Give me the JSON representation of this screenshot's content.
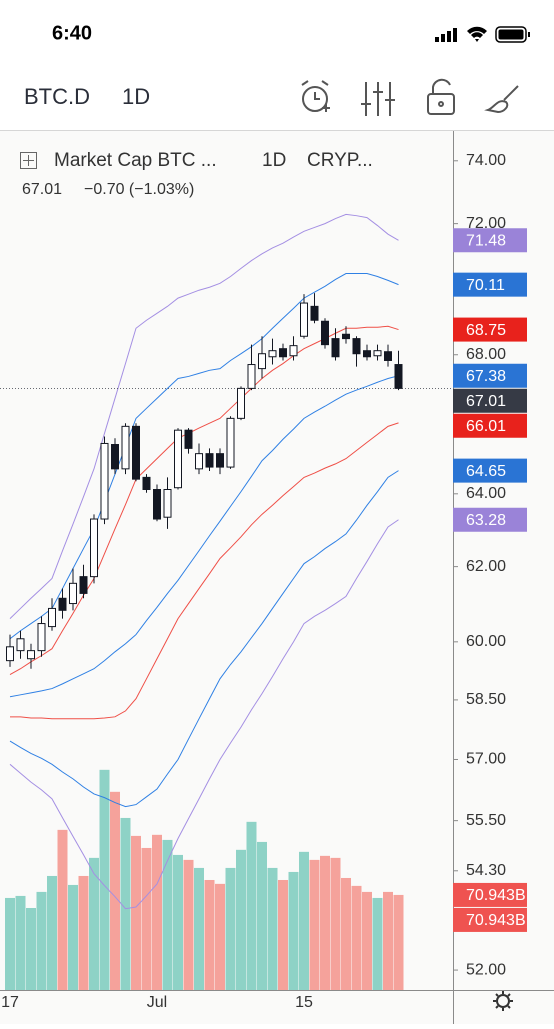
{
  "status_bar": {
    "time": "6:40"
  },
  "toolbar": {
    "symbol": "BTC.D",
    "interval": "1D"
  },
  "chart_data": {
    "type": "candlestick",
    "title": "Market Cap BTC ...",
    "interval": "1D",
    "exchange": "CRYP...",
    "change_label": "−0.70 (−1.03%)",
    "categories": [
      "17",
      null,
      null,
      null,
      null,
      null,
      null,
      null,
      null,
      null,
      null,
      null,
      null,
      null,
      "Jul",
      null,
      null,
      null,
      null,
      null,
      null,
      null,
      null,
      null,
      null,
      null,
      null,
      null,
      "15",
      null,
      null,
      null,
      null,
      null,
      null,
      null,
      null,
      null
    ],
    "open": [
      59.51,
      59.77,
      59.56,
      59.77,
      60.4,
      61.15,
      61.01,
      61.73,
      61.73,
      63.3,
      65.39,
      64.7,
      65.91,
      64.46,
      64.12,
      63.35,
      64.17,
      65.8,
      64.7,
      65.13,
      65.13,
      64.75,
      66.14,
      67.01,
      67.59,
      67.94,
      68.18,
      67.97,
      68.55,
      69.45,
      69.0,
      68.48,
      68.61,
      68.48,
      68.12,
      67.97,
      68.09,
      67.71
    ],
    "high": [
      60.19,
      60.29,
      59.95,
      60.67,
      61.15,
      61.41,
      61.95,
      62.05,
      63.43,
      65.62,
      65.57,
      66.0,
      66.0,
      64.55,
      64.26,
      64.46,
      65.86,
      65.86,
      65.42,
      65.28,
      65.28,
      66.2,
      67.07,
      68.3,
      68.55,
      68.48,
      68.33,
      68.55,
      69.82,
      69.85,
      69.09,
      68.79,
      68.85,
      68.55,
      68.3,
      68.3,
      68.3,
      68.12
    ],
    "low": [
      59.35,
      59.56,
      59.3,
      59.61,
      60.29,
      60.61,
      60.83,
      61.15,
      61.55,
      63.16,
      64.55,
      64.55,
      64.35,
      64.03,
      63.24,
      63.03,
      64.12,
      65.13,
      64.55,
      64.64,
      64.55,
      64.7,
      66.09,
      66.96,
      67.3,
      67.71,
      67.83,
      67.83,
      68.48,
      68.94,
      68.18,
      67.83,
      68.33,
      67.65,
      67.83,
      67.83,
      67.65,
      66.96
    ],
    "close": [
      59.87,
      60.08,
      59.77,
      60.48,
      60.88,
      60.83,
      61.55,
      61.28,
      63.3,
      65.42,
      64.7,
      65.91,
      64.41,
      64.12,
      63.3,
      64.12,
      65.8,
      65.28,
      65.13,
      64.75,
      64.75,
      66.14,
      67.01,
      67.71,
      68.03,
      68.12,
      67.94,
      68.27,
      69.55,
      69.03,
      68.3,
      67.94,
      68.48,
      68.03,
      67.94,
      68.12,
      67.83,
      67.01
    ],
    "up_color": "#ffffff",
    "down_color": "#131722",
    "last_color": "#363a45",
    "ylim": [
      51.55,
      75.0
    ],
    "log_scale": true,
    "yticks": [
      {
        "value": 74,
        "label": "74.00"
      },
      {
        "value": 72,
        "label": "72.00"
      },
      {
        "value": 68,
        "label": "68.00"
      },
      {
        "value": 64,
        "label": "64.00"
      },
      {
        "value": 62,
        "label": "62.00"
      },
      {
        "value": 60,
        "label": "60.00"
      },
      {
        "value": 58.5,
        "label": "58.50"
      },
      {
        "value": 57,
        "label": "57.00"
      },
      {
        "value": 55.5,
        "label": "55.50"
      },
      {
        "value": 54.3,
        "label": "54.30"
      },
      {
        "value": 52,
        "label": "52.00"
      }
    ],
    "bands": [
      {
        "color": "#a48fe3",
        "values": [
          60.61,
          60.88,
          61.15,
          61.41,
          61.68,
          62.43,
          63.16,
          63.92,
          64.7,
          65.71,
          66.72,
          67.74,
          68.79,
          69.03,
          69.24,
          69.45,
          69.7,
          69.82,
          69.94,
          70.03,
          70.15,
          70.36,
          70.61,
          70.85,
          71.06,
          71.24,
          71.39,
          71.58,
          71.76,
          71.88,
          72.0,
          72.16,
          72.29,
          72.25,
          72.19,
          71.94,
          71.67,
          71.48
        ]
      },
      {
        "color": "#2f80e4",
        "values": [
          60.08,
          60.29,
          60.48,
          60.67,
          60.88,
          61.41,
          61.95,
          62.49,
          63.03,
          63.78,
          64.55,
          65.33,
          66.14,
          66.43,
          66.72,
          67.01,
          67.3,
          67.36,
          67.45,
          67.54,
          67.59,
          67.83,
          68.03,
          68.24,
          68.48,
          68.79,
          69.09,
          69.39,
          69.7,
          69.88,
          70.06,
          70.27,
          70.45,
          70.45,
          70.45,
          70.36,
          70.24,
          70.11
        ]
      },
      {
        "color": "#ef4f47",
        "values": [
          59.15,
          59.3,
          59.48,
          59.64,
          59.82,
          60.29,
          60.75,
          61.23,
          61.68,
          62.35,
          63.03,
          63.7,
          64.41,
          64.7,
          64.99,
          65.28,
          65.57,
          65.71,
          65.86,
          66.0,
          66.14,
          66.43,
          66.72,
          67.01,
          67.3,
          67.54,
          67.74,
          67.97,
          68.18,
          68.33,
          68.48,
          68.64,
          68.79,
          68.79,
          68.82,
          68.82,
          68.85,
          68.75
        ]
      },
      {
        "color": "#2f80e4",
        "values": [
          58.58,
          58.63,
          58.68,
          58.73,
          58.79,
          58.91,
          59.04,
          59.17,
          59.3,
          59.51,
          59.74,
          59.95,
          60.19,
          60.56,
          60.91,
          61.28,
          61.63,
          62.03,
          62.43,
          62.84,
          63.24,
          63.65,
          64.06,
          64.49,
          64.93,
          65.22,
          65.54,
          65.83,
          66.14,
          66.32,
          66.49,
          66.67,
          66.84,
          66.96,
          67.07,
          67.19,
          67.3,
          67.38
        ]
      },
      {
        "color": "#ef4f47",
        "values": [
          58.07,
          58.07,
          58.04,
          58.04,
          58.02,
          58.02,
          58.02,
          58.02,
          58.02,
          58.04,
          58.07,
          58.22,
          58.53,
          59.04,
          59.56,
          60.08,
          60.61,
          61.01,
          61.41,
          61.81,
          62.22,
          62.51,
          62.81,
          63.14,
          63.43,
          63.68,
          63.95,
          64.2,
          64.46,
          64.58,
          64.72,
          64.84,
          64.99,
          65.22,
          65.45,
          65.68,
          65.91,
          66.01
        ]
      },
      {
        "color": "#2f80e4",
        "values": [
          57.46,
          57.3,
          57.15,
          57.03,
          56.88,
          56.69,
          56.52,
          56.32,
          56.15,
          56.06,
          55.94,
          55.84,
          55.89,
          56.08,
          56.27,
          56.64,
          57.0,
          57.51,
          58.02,
          58.53,
          59.04,
          59.41,
          59.74,
          60.11,
          60.48,
          60.88,
          61.28,
          61.68,
          62.08,
          62.27,
          62.49,
          62.68,
          62.89,
          63.27,
          63.68,
          64.06,
          64.46,
          64.65
        ]
      },
      {
        "color": "#a48fe3",
        "values": [
          56.88,
          56.66,
          56.44,
          56.25,
          56.03,
          55.57,
          55.12,
          54.68,
          54.23,
          53.95,
          53.69,
          53.41,
          53.45,
          53.71,
          53.99,
          54.54,
          55.07,
          55.55,
          56.03,
          56.52,
          57.0,
          57.41,
          57.81,
          58.25,
          58.66,
          59.1,
          59.56,
          60.0,
          60.48,
          60.67,
          60.83,
          61.01,
          61.2,
          61.68,
          62.14,
          62.62,
          63.08,
          63.28
        ]
      }
    ],
    "volume": {
      "up_color": "#8ed2c6",
      "down_color": "#f5a29b",
      "values": [
        68.7,
        70.2,
        61.2,
        73.2,
        85.1,
        119.5,
        78.4,
        85.1,
        98.6,
        164.3,
        147.9,
        128.4,
        115.0,
        106.0,
        115.8,
        112.0,
        100.8,
        97.1,
        91.1,
        82.1,
        79.2,
        91.1,
        104.6,
        125.5,
        110.5,
        91.1,
        82.1,
        88.1,
        103.1,
        97.1,
        100.1,
        98.6,
        83.6,
        77.7,
        73.2,
        68.7,
        73.2,
        70.943
      ]
    },
    "markers": [
      {
        "value": 71.48,
        "color": "#9a83d8"
      },
      {
        "value": 70.11,
        "color": "#2a74d4"
      },
      {
        "value": 68.75,
        "color": "#e8221c"
      },
      {
        "value": 67.38,
        "color": "#2a74d4"
      },
      {
        "value": 66.01,
        "color": "#e8221c"
      },
      {
        "value": 64.65,
        "color": "#2a74d4"
      },
      {
        "value": 63.28,
        "color": "#9a83d8"
      },
      {
        "value": 70.943,
        "label": "70.943B",
        "color": "#ef5350",
        "axis": "volume"
      },
      {
        "value": 70.943,
        "label": "70.943B",
        "color": "#ef5350",
        "axis": "volume"
      }
    ]
  }
}
